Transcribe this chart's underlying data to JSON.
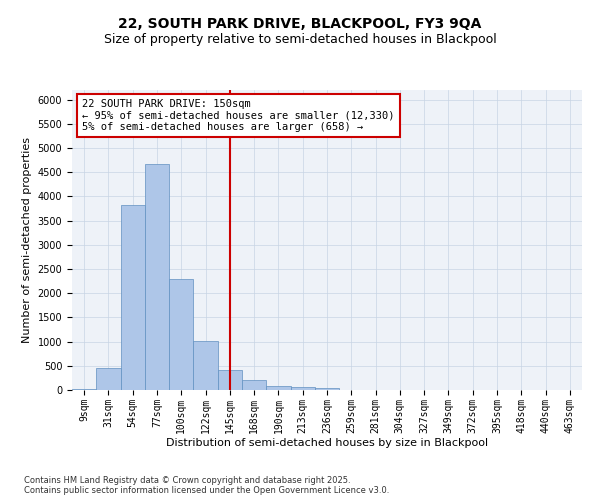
{
  "title1": "22, SOUTH PARK DRIVE, BLACKPOOL, FY3 9QA",
  "title2": "Size of property relative to semi-detached houses in Blackpool",
  "xlabel": "Distribution of semi-detached houses by size in Blackpool",
  "ylabel": "Number of semi-detached properties",
  "footnote": "Contains HM Land Registry data © Crown copyright and database right 2025.\nContains public sector information licensed under the Open Government Licence v3.0.",
  "categories": [
    "9sqm",
    "31sqm",
    "54sqm",
    "77sqm",
    "100sqm",
    "122sqm",
    "145sqm",
    "168sqm",
    "190sqm",
    "213sqm",
    "236sqm",
    "259sqm",
    "281sqm",
    "304sqm",
    "327sqm",
    "349sqm",
    "372sqm",
    "395sqm",
    "418sqm",
    "440sqm",
    "463sqm"
  ],
  "values": [
    30,
    460,
    3820,
    4680,
    2300,
    1010,
    410,
    200,
    75,
    55,
    50,
    0,
    0,
    0,
    0,
    0,
    0,
    0,
    0,
    0,
    0
  ],
  "bar_color": "#aec6e8",
  "bar_edge_color": "#6090c0",
  "vline_x_index": 6,
  "vline_color": "#cc0000",
  "annotation_text": "22 SOUTH PARK DRIVE: 150sqm\n← 95% of semi-detached houses are smaller (12,330)\n5% of semi-detached houses are larger (658) →",
  "annotation_box_color": "#ffffff",
  "annotation_border_color": "#cc0000",
  "ylim": [
    0,
    6200
  ],
  "yticks": [
    0,
    500,
    1000,
    1500,
    2000,
    2500,
    3000,
    3500,
    4000,
    4500,
    5000,
    5500,
    6000
  ],
  "bg_color": "#eef2f8",
  "title1_fontsize": 10,
  "title2_fontsize": 9,
  "axis_label_fontsize": 8,
  "tick_fontsize": 7,
  "annot_fontsize": 7.5,
  "ylabel_fontsize": 8
}
